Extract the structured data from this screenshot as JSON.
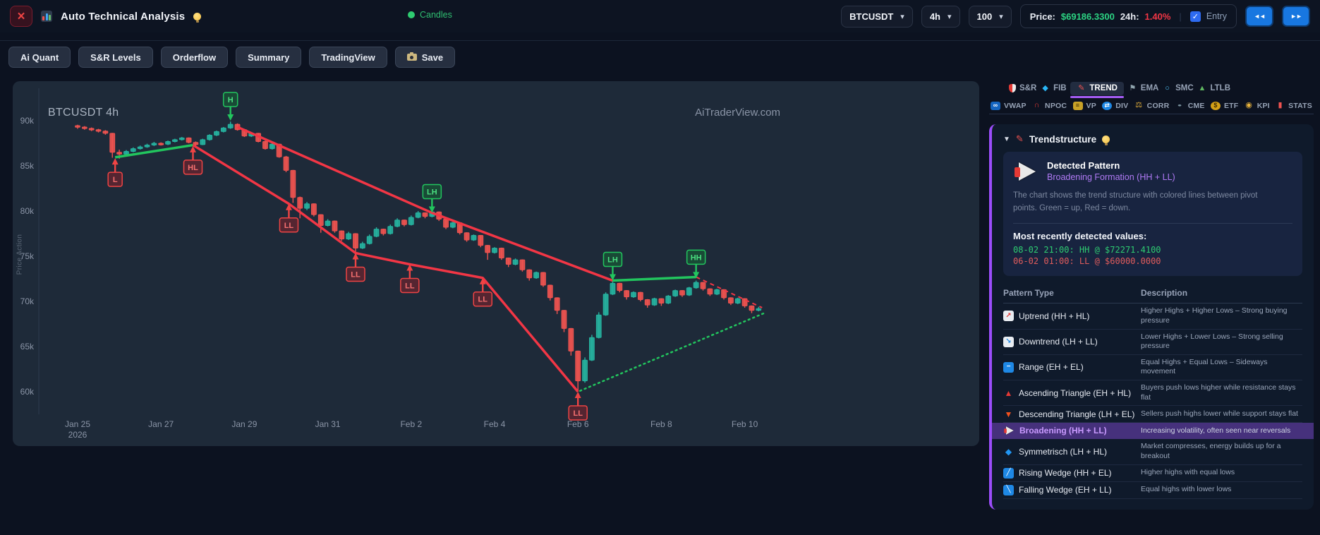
{
  "topbar": {
    "title": "Auto Technical Analysis",
    "legend": "Candles",
    "symbol": "BTCUSDT",
    "timeframe": "4h",
    "limit": "100",
    "price_label": "Price:",
    "price_value": "$69186.3300",
    "change_label": "24h:",
    "change_value": "1.40%",
    "entry_label": "Entry",
    "prev_icon": "◄◄",
    "next_icon": "►►",
    "close_glyph": "×"
  },
  "toolbar": {
    "buttons": [
      "Ai Quant",
      "S&R Levels",
      "Orderflow",
      "Summary",
      "TradingView"
    ],
    "save_label": "Save"
  },
  "right_panel": {
    "tabs": [
      {
        "label": "S&R",
        "icon": "shield-icon",
        "shield": true
      },
      {
        "label": "FIB",
        "icon": "diamond-icon",
        "glyph": "◆",
        "color": "#29b6f6"
      },
      {
        "label": "TREND",
        "icon": "trendline-pen-icon",
        "glyph": "✎",
        "color": "#ef5350",
        "active": true
      },
      {
        "label": "EMA",
        "icon": "flag-icon",
        "glyph": "⚑",
        "color": "#90a4ae"
      },
      {
        "label": "SMC",
        "icon": "ring-icon",
        "glyph": "○",
        "color": "#4fc3f7"
      },
      {
        "label": "LTLB",
        "icon": "mountain-icon",
        "glyph": "▲",
        "color": "#5fb760"
      }
    ],
    "subtabs": [
      {
        "label": "VWAP",
        "icon": "vwap-icon",
        "glyph": "∞",
        "box": "#1565c0",
        "fg": "#fff"
      },
      {
        "label": "NPOC",
        "icon": "magnet-icon",
        "glyph": "∩",
        "color": "#e53935"
      },
      {
        "label": "VP",
        "icon": "volume-profile-icon",
        "glyph": "≡",
        "box": "#c9a227",
        "fg": "#3e2c00"
      },
      {
        "label": "DIV",
        "icon": "divergence-icon",
        "glyph": "⇄",
        "box": "#1e88e5",
        "fg": "#fff",
        "round": true
      },
      {
        "label": "CORR",
        "icon": "scales-icon",
        "glyph": "⚖",
        "color": "#e8b33c"
      },
      {
        "label": "CME",
        "icon": "cme-icon",
        "glyph": "●",
        "color": "#78909c",
        "squash": true
      },
      {
        "label": "ETF",
        "icon": "money-bag-icon",
        "glyph": "$",
        "box": "#d4a017",
        "fg": "#3e2c00",
        "round": true
      },
      {
        "label": "KPI",
        "icon": "medal-icon",
        "glyph": "◉",
        "color": "#e8b33c"
      },
      {
        "label": "STATS",
        "icon": "thermometer-icon",
        "glyph": "▮",
        "color": "#ef5350"
      }
    ],
    "trend": {
      "header": "Trendstructure",
      "caret": "▼",
      "pen": "✎",
      "detected_title": "Detected Pattern",
      "detected_value": "Broadening Formation (HH + LL)",
      "description": "The chart shows the trend structure with colored lines between pivot points. Green = up, Red = down.",
      "recent_title": "Most recently detected values:",
      "recent_hh": "08-02 21:00: HH @ $72271.4100",
      "recent_ll": "06-02 01:00: LL @ $60000.0000",
      "table": {
        "col1": "Pattern Type",
        "col2": "Description",
        "rows": [
          {
            "icon": "uptrend-chart-icon",
            "cls": "box",
            "bg": "#e9edf2",
            "fg": "#e53935",
            "glyph": "↗",
            "name": "Uptrend (HH + HL)",
            "desc": "Higher Highs + Higher Lows – Strong buying pressure"
          },
          {
            "icon": "downtrend-chart-icon",
            "cls": "box",
            "bg": "#e9edf2",
            "fg": "#1e88e5",
            "glyph": "↘",
            "name": "Downtrend (LH + LL)",
            "desc": "Lower Highs + Lower Lows – Strong selling pressure"
          },
          {
            "icon": "range-icon",
            "cls": "box",
            "bg": "#1e88e5",
            "fg": "#ffffff",
            "glyph": "−",
            "name": "Range (EH + EL)",
            "desc": "Equal Highs + Equal Lows – Sideways movement"
          },
          {
            "icon": "ascending-triangle-icon",
            "cls": "plain",
            "fg": "#e53935",
            "glyph": "▲",
            "name": "Ascending Triangle (EH + HL)",
            "desc": "Buyers push lows higher while resistance stays flat"
          },
          {
            "icon": "descending-triangle-icon",
            "cls": "plain",
            "fg": "#f4511e",
            "glyph": "▼",
            "name": "Descending Triangle (LH + EL)",
            "desc": "Sellers push highs lower while support stays flat"
          },
          {
            "icon": "megaphone-icon",
            "cls": "mega",
            "name": "Broadening (HH + LL)",
            "desc": "Increasing volatility, often seen near reversals",
            "highlight": true
          },
          {
            "icon": "diamond-icon",
            "cls": "plain",
            "fg": "#2196f3",
            "glyph": "◆",
            "name": "Symmetrisch (LH + HL)",
            "desc": "Market compresses, energy builds up for a breakout"
          },
          {
            "icon": "rising-wedge-icon",
            "cls": "box",
            "bg": "#1e88e5",
            "fg": "#ffffff",
            "glyph": "╱",
            "name": "Rising Wedge (HH + EL)",
            "desc": "Higher highs with equal lows"
          },
          {
            "icon": "falling-wedge-icon",
            "cls": "box",
            "bg": "#1e88e5",
            "fg": "#ffffff",
            "glyph": "╲",
            "name": "Falling Wedge (EH + LL)",
            "desc": "Equal highs with lower lows"
          }
        ]
      }
    }
  },
  "chart_data": {
    "type": "candlestick",
    "symbol_label": "BTCUSDT 4h",
    "watermark": "AiTraderView.com",
    "y_axis_label": "Price Action",
    "timeframe_hours": 4,
    "ylim_thousands": [
      58,
      92
    ],
    "y_ticks": [
      "90k",
      "85k",
      "80k",
      "75k",
      "70k",
      "65k",
      "60k"
    ],
    "y_tick_values": [
      90,
      85,
      80,
      75,
      70,
      65,
      60
    ],
    "x_ticks": [
      {
        "label": "Jan 25",
        "sub": "2026",
        "idx": 0
      },
      {
        "label": "Jan 27",
        "idx": 12
      },
      {
        "label": "Jan 29",
        "idx": 24
      },
      {
        "label": "Jan 31",
        "idx": 36
      },
      {
        "label": "Feb 2",
        "idx": 48
      },
      {
        "label": "Feb 4",
        "idx": 60
      },
      {
        "label": "Feb 6",
        "idx": 72
      },
      {
        "label": "Feb 8",
        "idx": 84
      },
      {
        "label": "Feb 10",
        "idx": 96
      }
    ],
    "colors": {
      "up": "#26b3a0",
      "down": "#ef5350",
      "line_up": "#22c55e",
      "line_down": "#f23645"
    },
    "candles": [
      [
        89.45,
        89.55,
        89.1,
        89.3
      ],
      [
        89.3,
        89.4,
        89.0,
        89.15
      ],
      [
        89.15,
        89.25,
        88.85,
        89.0
      ],
      [
        89.0,
        89.1,
        88.7,
        88.85
      ],
      [
        88.85,
        88.95,
        88.45,
        88.6
      ],
      [
        88.6,
        88.65,
        85.9,
        86.5
      ],
      [
        86.5,
        86.8,
        85.8,
        86.3
      ],
      [
        86.3,
        86.75,
        86.2,
        86.6
      ],
      [
        86.6,
        87.05,
        86.5,
        86.9
      ],
      [
        86.9,
        87.25,
        86.8,
        87.1
      ],
      [
        87.1,
        87.45,
        87.0,
        87.3
      ],
      [
        87.3,
        87.65,
        87.2,
        87.5
      ],
      [
        87.5,
        87.6,
        87.25,
        87.4
      ],
      [
        87.4,
        87.8,
        87.3,
        87.7
      ],
      [
        87.7,
        88.0,
        87.6,
        87.9
      ],
      [
        87.9,
        88.2,
        87.8,
        88.1
      ],
      [
        88.1,
        88.15,
        87.5,
        87.6
      ],
      [
        87.6,
        87.7,
        87.2,
        87.35
      ],
      [
        87.35,
        88.0,
        87.3,
        87.9
      ],
      [
        87.9,
        88.5,
        87.8,
        88.4
      ],
      [
        88.4,
        88.9,
        88.3,
        88.8
      ],
      [
        88.8,
        89.3,
        88.7,
        89.2
      ],
      [
        89.2,
        89.9,
        89.1,
        89.6
      ],
      [
        89.6,
        89.7,
        88.9,
        89.0
      ],
      [
        89.0,
        89.1,
        88.2,
        88.3
      ],
      [
        88.3,
        88.7,
        88.2,
        88.6
      ],
      [
        88.6,
        88.65,
        87.6,
        87.7
      ],
      [
        87.7,
        87.8,
        86.8,
        86.9
      ],
      [
        86.9,
        87.5,
        86.8,
        87.4
      ],
      [
        87.4,
        87.45,
        85.9,
        86.0
      ],
      [
        86.0,
        86.1,
        84.3,
        84.5
      ],
      [
        84.5,
        84.55,
        80.9,
        81.5
      ],
      [
        81.5,
        81.6,
        79.2,
        80.3
      ],
      [
        80.3,
        81.0,
        80.1,
        80.8
      ],
      [
        80.8,
        80.85,
        79.4,
        79.6
      ],
      [
        79.6,
        79.65,
        77.6,
        78.4
      ],
      [
        78.4,
        79.1,
        78.3,
        78.9
      ],
      [
        78.9,
        78.95,
        77.6,
        77.8
      ],
      [
        77.8,
        77.85,
        76.7,
        76.9
      ],
      [
        76.9,
        77.7,
        76.8,
        77.5
      ],
      [
        77.5,
        77.55,
        75.2,
        75.9
      ],
      [
        75.9,
        76.6,
        75.8,
        76.4
      ],
      [
        76.4,
        77.4,
        76.3,
        77.2
      ],
      [
        77.2,
        78.2,
        77.1,
        78.0
      ],
      [
        78.0,
        78.05,
        77.3,
        77.5
      ],
      [
        77.5,
        78.5,
        77.4,
        78.3
      ],
      [
        78.3,
        79.2,
        78.2,
        79.0
      ],
      [
        79.0,
        79.05,
        78.3,
        78.5
      ],
      [
        78.5,
        79.5,
        78.4,
        79.3
      ],
      [
        79.3,
        80.0,
        79.2,
        79.8
      ],
      [
        79.8,
        79.85,
        79.2,
        79.4
      ],
      [
        79.4,
        80.4,
        79.3,
        79.9
      ],
      [
        79.9,
        79.95,
        78.9,
        79.1
      ],
      [
        79.1,
        79.15,
        78.0,
        78.2
      ],
      [
        78.2,
        78.8,
        78.1,
        78.7
      ],
      [
        78.7,
        78.75,
        77.4,
        77.6
      ],
      [
        77.6,
        77.65,
        76.6,
        76.8
      ],
      [
        76.8,
        77.4,
        76.7,
        77.3
      ],
      [
        77.3,
        77.35,
        76.0,
        76.2
      ],
      [
        76.2,
        76.25,
        74.6,
        75.4
      ],
      [
        75.4,
        76.0,
        75.3,
        75.9
      ],
      [
        75.9,
        75.95,
        74.6,
        74.8
      ],
      [
        74.8,
        74.85,
        73.8,
        74.1
      ],
      [
        74.1,
        74.75,
        74.0,
        74.6
      ],
      [
        74.6,
        74.65,
        73.3,
        73.5
      ],
      [
        73.5,
        73.55,
        72.3,
        72.6
      ],
      [
        72.6,
        73.3,
        72.5,
        73.2
      ],
      [
        73.2,
        73.25,
        71.6,
        71.8
      ],
      [
        71.8,
        71.85,
        70.1,
        70.4
      ],
      [
        70.4,
        70.45,
        68.6,
        69.0
      ],
      [
        69.0,
        69.05,
        66.6,
        67.0
      ],
      [
        67.0,
        67.05,
        64.0,
        64.5
      ],
      [
        64.5,
        64.55,
        60.0,
        61.2
      ],
      [
        61.2,
        63.8,
        61.0,
        63.5
      ],
      [
        63.5,
        66.3,
        63.4,
        66.0
      ],
      [
        66.0,
        68.8,
        65.9,
        68.5
      ],
      [
        68.5,
        71.0,
        68.4,
        70.8
      ],
      [
        70.8,
        72.5,
        70.7,
        72.0
      ],
      [
        72.0,
        72.05,
        71.0,
        71.2
      ],
      [
        71.2,
        71.25,
        70.2,
        70.5
      ],
      [
        70.5,
        71.1,
        70.4,
        71.0
      ],
      [
        71.0,
        71.05,
        70.0,
        70.2
      ],
      [
        70.2,
        70.25,
        69.3,
        69.6
      ],
      [
        69.6,
        70.4,
        69.5,
        70.3
      ],
      [
        70.3,
        70.35,
        69.5,
        69.8
      ],
      [
        69.8,
        70.7,
        69.7,
        70.6
      ],
      [
        70.6,
        71.3,
        70.5,
        71.2
      ],
      [
        71.2,
        71.25,
        70.5,
        70.7
      ],
      [
        70.7,
        71.6,
        70.6,
        71.5
      ],
      [
        71.5,
        72.3,
        71.4,
        72.1
      ],
      [
        72.1,
        72.15,
        71.2,
        71.4
      ],
      [
        71.4,
        71.45,
        70.6,
        70.8
      ],
      [
        70.8,
        71.4,
        70.7,
        71.3
      ],
      [
        71.3,
        71.35,
        70.2,
        70.4
      ],
      [
        70.4,
        70.45,
        69.6,
        69.8
      ],
      [
        69.8,
        70.4,
        69.7,
        70.3
      ],
      [
        70.3,
        70.35,
        69.3,
        69.5
      ],
      [
        69.5,
        69.55,
        68.7,
        69.0
      ],
      [
        69.0,
        69.4,
        68.9,
        69.2
      ]
    ],
    "pivots": [
      {
        "label": "L",
        "idx": 5.4,
        "price": 85.85,
        "color": "red",
        "side": "below"
      },
      {
        "label": "HL",
        "idx": 16.6,
        "price": 87.2,
        "color": "red",
        "side": "below"
      },
      {
        "label": "H",
        "idx": 22,
        "price": 90.0,
        "color": "green",
        "side": "above"
      },
      {
        "label": "LL",
        "idx": 30.4,
        "price": 80.8,
        "color": "red",
        "side": "below"
      },
      {
        "label": "LL",
        "idx": 40,
        "price": 75.35,
        "color": "red",
        "side": "below"
      },
      {
        "label": "LL",
        "idx": 47.8,
        "price": 74.1,
        "color": "red",
        "side": "below"
      },
      {
        "label": "LH",
        "idx": 51,
        "price": 79.8,
        "color": "green",
        "side": "above"
      },
      {
        "label": "LL",
        "idx": 58.3,
        "price": 72.6,
        "color": "red",
        "side": "below"
      },
      {
        "label": "LL",
        "idx": 72,
        "price": 60.0,
        "color": "red",
        "side": "below"
      },
      {
        "label": "LH",
        "idx": 77,
        "price": 72.3,
        "color": "green",
        "side": "above"
      },
      {
        "label": "HH",
        "idx": 89,
        "price": 72.55,
        "color": "green",
        "side": "above"
      }
    ],
    "lines": [
      {
        "name": "pivot-up-segment",
        "color": "#22c55e",
        "width": 3.5,
        "points": [
          [
            5.4,
            85.95
          ],
          [
            16.6,
            87.3
          ]
        ]
      },
      {
        "name": "lower-downtrend-line",
        "color": "#f23645",
        "width": 3.5,
        "points": [
          [
            16.6,
            87.3
          ],
          [
            30.4,
            80.8
          ],
          [
            40,
            75.35
          ],
          [
            47.8,
            74.1
          ],
          [
            58.3,
            72.6
          ],
          [
            72,
            60.0
          ]
        ]
      },
      {
        "name": "upper-downtrend-line",
        "color": "#f23645",
        "width": 3.5,
        "points": [
          [
            23,
            89.3
          ],
          [
            51,
            79.8
          ],
          [
            77,
            72.3
          ]
        ]
      },
      {
        "name": "recovery-up-segment",
        "color": "#22c55e",
        "width": 3.5,
        "points": [
          [
            77,
            72.3
          ],
          [
            89,
            72.7
          ]
        ]
      },
      {
        "name": "projection-down-dashed",
        "color": "#f23645",
        "width": 2,
        "dash": "6 5",
        "points": [
          [
            89,
            72.7
          ],
          [
            98.5,
            69.3
          ]
        ]
      },
      {
        "name": "broadening-support-dotted",
        "color": "#22c55e",
        "width": 2.5,
        "dash": "2 5",
        "cap": "round",
        "points": [
          [
            72.3,
            60.1
          ],
          [
            98.8,
            68.7
          ]
        ]
      }
    ]
  }
}
